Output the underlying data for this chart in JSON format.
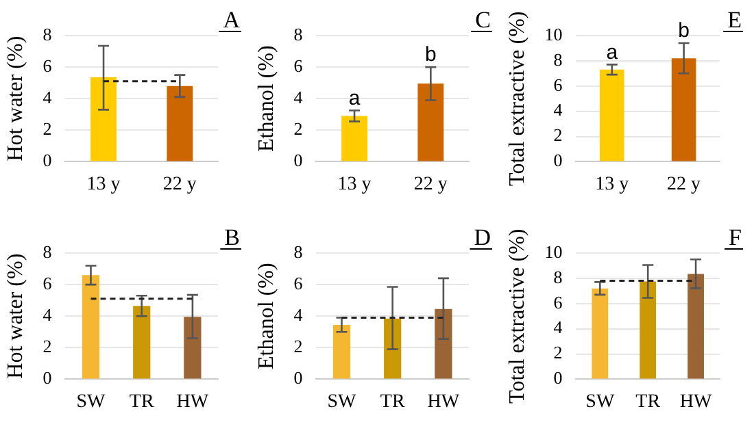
{
  "chart_data": [
    {
      "type": "bar",
      "ylabel": "Hot water (%)",
      "categories": [
        "13 y",
        "22 y"
      ],
      "values": [
        5.35,
        4.8
      ],
      "colors": [
        "#ffcc00",
        "#cc6600"
      ],
      "errors": [
        [
          3.3,
          7.35
        ],
        [
          4.1,
          5.5
        ]
      ],
      "ylim": [
        0,
        8
      ],
      "yticks": [
        0,
        2,
        4,
        6,
        8
      ],
      "grid": "y",
      "ref_lines": [
        {
          "axis": "y",
          "value": 5.1,
          "line_style": "dashed"
        }
      ],
      "annotations": [
        "A"
      ]
    },
    {
      "type": "bar",
      "ylabel": "Ethanol (%)",
      "categories": [
        "13 y",
        "22 y"
      ],
      "values": [
        2.9,
        4.95
      ],
      "colors": [
        "#ffcc00",
        "#cc6600"
      ],
      "errors": [
        [
          2.55,
          3.25
        ],
        [
          3.9,
          6.0
        ]
      ],
      "ylim": [
        0,
        8
      ],
      "yticks": [
        0,
        2,
        4,
        6,
        8
      ],
      "grid": "y",
      "annotations": [
        "C",
        {
          "text": "a",
          "x": "13 y",
          "y": 3.25
        },
        {
          "text": "b",
          "x": "22 y",
          "y": 6.0
        }
      ]
    },
    {
      "type": "bar",
      "ylabel": "Total extractive (%)",
      "categories": [
        "13 y",
        "22 y"
      ],
      "values": [
        7.3,
        8.2
      ],
      "colors": [
        "#ffcc00",
        "#cc6600"
      ],
      "errors": [
        [
          6.9,
          7.7
        ],
        [
          7.0,
          9.4
        ]
      ],
      "ylim": [
        0,
        10
      ],
      "yticks": [
        0,
        2,
        4,
        6,
        8,
        10
      ],
      "grid": "y",
      "annotations": [
        "E",
        {
          "text": "a",
          "x": "13 y",
          "y": 7.7
        },
        {
          "text": "b",
          "x": "22 y",
          "y": 9.4
        }
      ]
    },
    {
      "type": "bar",
      "ylabel": "Hot water (%)",
      "categories": [
        "SW",
        "TR",
        "HW"
      ],
      "values": [
        6.6,
        4.65,
        3.95
      ],
      "colors": [
        "#f5b731",
        "#c99a06",
        "#9a6434"
      ],
      "errors": [
        [
          6.0,
          7.2
        ],
        [
          4.0,
          5.3
        ],
        [
          2.6,
          5.35
        ]
      ],
      "ylim": [
        0,
        8
      ],
      "yticks": [
        0,
        2,
        4,
        6,
        8
      ],
      "grid": "y",
      "ref_lines": [
        {
          "axis": "y",
          "value": 5.1,
          "line_style": "dashed"
        }
      ],
      "annotations": [
        "B"
      ]
    },
    {
      "type": "bar",
      "ylabel": "Ethanol (%)",
      "categories": [
        "SW",
        "TR",
        "HW"
      ],
      "values": [
        3.45,
        3.85,
        4.45
      ],
      "colors": [
        "#f5b731",
        "#c99a06",
        "#9a6434"
      ],
      "errors": [
        [
          3.0,
          3.9
        ],
        [
          1.9,
          5.85
        ],
        [
          2.55,
          6.4
        ]
      ],
      "ylim": [
        0,
        8
      ],
      "yticks": [
        0,
        2,
        4,
        6,
        8
      ],
      "grid": "y",
      "ref_lines": [
        {
          "axis": "y",
          "value": 3.9,
          "line_style": "dashed"
        }
      ],
      "annotations": [
        "D"
      ]
    },
    {
      "type": "bar",
      "ylabel": "Total extractive (%)",
      "categories": [
        "SW",
        "TR",
        "HW"
      ],
      "values": [
        7.2,
        7.75,
        8.35
      ],
      "colors": [
        "#f5b731",
        "#c99a06",
        "#9a6434"
      ],
      "errors": [
        [
          6.7,
          7.7
        ],
        [
          6.45,
          9.05
        ],
        [
          7.2,
          9.5
        ]
      ],
      "ylim": [
        0,
        10
      ],
      "yticks": [
        0,
        2,
        4,
        6,
        8,
        10
      ],
      "grid": "y",
      "ref_lines": [
        {
          "axis": "y",
          "value": 7.8,
          "line_style": "dashed"
        }
      ],
      "annotations": [
        "F"
      ]
    }
  ]
}
